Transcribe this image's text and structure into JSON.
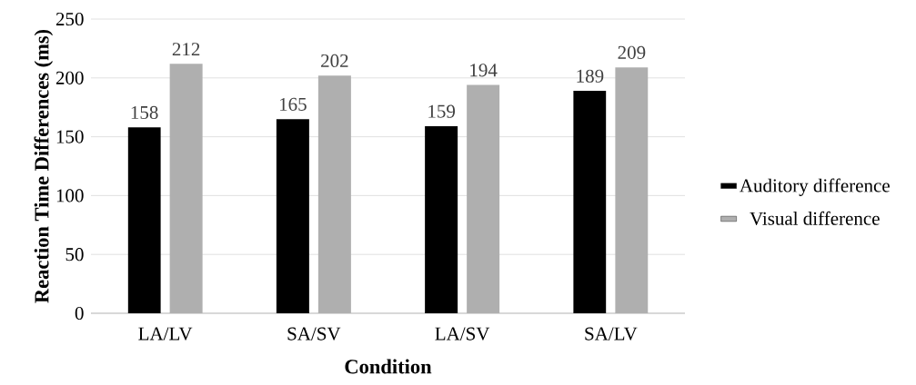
{
  "chart_data": {
    "type": "bar",
    "ylabel": "Reaction Time Differences (ms)",
    "xlabel": "Condition",
    "categories": [
      "LA/LV",
      "SA/SV",
      "LA/SV",
      "SA/LV"
    ],
    "series": [
      {
        "name": "Auditory difference",
        "color": "#000000",
        "values": [
          158,
          165,
          159,
          189
        ]
      },
      {
        "name": "Visual difference",
        "color": "#afafaf",
        "values": [
          212,
          202,
          194,
          209
        ]
      }
    ],
    "ylim": [
      0,
      250
    ],
    "yticks": [
      0,
      50,
      100,
      150,
      200,
      250
    ],
    "grid": "y",
    "legend": "right",
    "data_labels": true
  }
}
